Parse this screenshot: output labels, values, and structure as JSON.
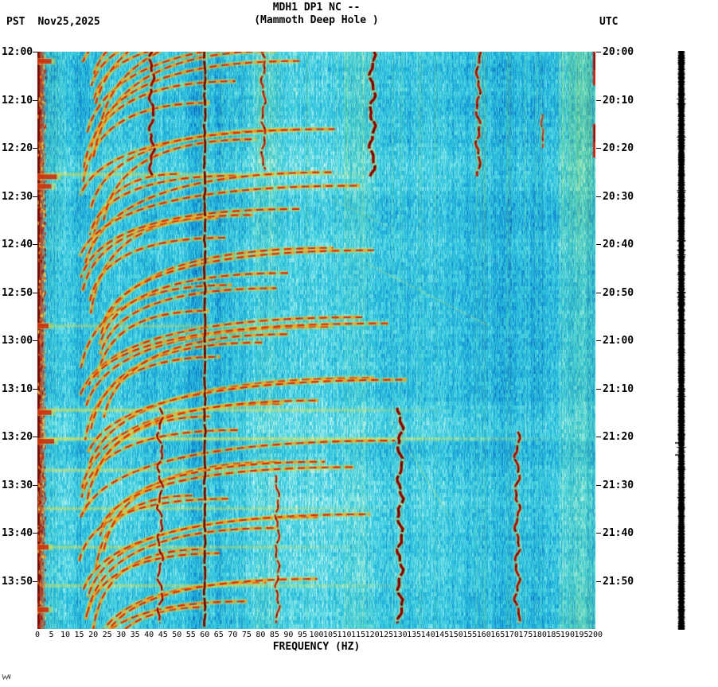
{
  "header": {
    "station_title": "MDH1 DP1 NC --",
    "station_subtitle": "(Mammoth Deep Hole )",
    "left_timezone": "PST",
    "date": "Nov25,2025",
    "right_timezone": "UTC"
  },
  "footer": {
    "x_axis_title": "FREQUENCY (HZ)"
  },
  "chart_data": {
    "type": "heatmap",
    "subtype": "seismic-spectrogram",
    "title": "MDH1 DP1 NC --",
    "subtitle": "(Mammoth Deep Hole )",
    "station": "MDH1 DP1 NC",
    "site_name": "Mammoth Deep Hole",
    "date": "Nov25,2025",
    "x_axis": {
      "label": "FREQUENCY (HZ)",
      "unit": "Hz",
      "min": 0,
      "max": 200,
      "tick_step": 5,
      "ticks": [
        "0",
        "5",
        "10",
        "15",
        "20",
        "25",
        "30",
        "35",
        "40",
        "45",
        "50",
        "55",
        "60",
        "65",
        "70",
        "75",
        "80",
        "85",
        "90",
        "95",
        "100",
        "105",
        "110",
        "115",
        "120",
        "125",
        "130",
        "135",
        "140",
        "145",
        "150",
        "155",
        "160",
        "165",
        "170",
        "175",
        "180",
        "185",
        "190",
        "195",
        "200"
      ]
    },
    "y_axis_left": {
      "timezone": "PST",
      "start": "12:00",
      "end": "14:00",
      "duration_min": 120,
      "tick_step_min": 10,
      "tick_labels": [
        "12:00",
        "12:10",
        "12:20",
        "12:30",
        "12:40",
        "12:50",
        "13:00",
        "13:10",
        "13:20",
        "13:30",
        "13:40",
        "13:50"
      ]
    },
    "y_axis_right": {
      "timezone": "UTC",
      "start": "20:00",
      "end": "22:00",
      "tick_labels": [
        "20:00",
        "20:10",
        "20:20",
        "20:30",
        "20:40",
        "20:50",
        "21:00",
        "21:10",
        "21:20",
        "21:30",
        "21:40",
        "21:50"
      ]
    },
    "colormap": {
      "bg_stops": [
        [
          0,
          "#0850b0"
        ],
        [
          0.22,
          "#1490d4"
        ],
        [
          0.5,
          "#2cc2dc"
        ],
        [
          0.75,
          "#62dce6"
        ],
        [
          1,
          "#c8f4f0"
        ]
      ],
      "tint": "#aadc64",
      "hot_glow": "#cde150",
      "hot_mid": "#ff9614",
      "hot_core": "#d21e06",
      "powerline": "#6e0606",
      "left_edge": "#a81408"
    },
    "features": {
      "powerline": {
        "f": 60,
        "color": "#6e0606",
        "width": 2.8
      },
      "glide_families": [
        {
          "t": 10,
          "n": 4,
          "dt": 2.6,
          "f_hi_min": 70,
          "f_hi_max": 120,
          "dur": 14
        },
        {
          "t": 27,
          "n": 7,
          "dt": 2.6,
          "f_hi_min": 60,
          "f_hi_max": 124,
          "dur": 18
        },
        {
          "t": 40,
          "n": 5,
          "dt": 2.4,
          "f_hi_min": 55,
          "f_hi_max": 104,
          "dur": 15
        },
        {
          "t": 54,
          "n": 6,
          "dt": 2.4,
          "f_hi_min": 60,
          "f_hi_max": 112,
          "dur": 16
        },
        {
          "t": 68,
          "n": 6,
          "dt": 2.4,
          "f_hi_min": 60,
          "f_hi_max": 118,
          "dur": 16
        },
        {
          "t": 81,
          "n": 6,
          "dt": 2.3,
          "f_hi_min": 65,
          "f_hi_max": 128,
          "dur": 16
        },
        {
          "t": 95,
          "n": 6,
          "dt": 2.3,
          "f_hi_min": 60,
          "f_hi_max": 130,
          "dur": 16
        },
        {
          "t": 108,
          "n": 6,
          "dt": 2.3,
          "f_hi_min": 60,
          "f_hi_max": 125,
          "dur": 15
        },
        {
          "t": 121,
          "n": 5,
          "dt": 2.4,
          "f_hi_min": 55,
          "f_hi_max": 115,
          "dur": 15
        },
        {
          "t": 131,
          "n": 4,
          "dt": 2.5,
          "f_hi_min": 60,
          "f_hi_max": 100,
          "dur": 15
        }
      ],
      "tremor_lines": [
        {
          "f": 41,
          "t0": 0,
          "t1": 26,
          "color": "#a00000",
          "width": 3,
          "amp": 2.5
        },
        {
          "f": 81,
          "t0": 0,
          "t1": 25,
          "color": "#c02010",
          "width": 2.4,
          "amp": 2
        },
        {
          "f": 120,
          "t0": 0,
          "t1": 26,
          "color": "#8e0000",
          "width": 3.4,
          "amp": 3
        },
        {
          "f": 158,
          "t0": 0,
          "t1": 26,
          "color": "#b01408",
          "width": 2.8,
          "amp": 2.2
        },
        {
          "f": 181,
          "t0": 13,
          "t1": 20,
          "color": "#c23020",
          "width": 1.8,
          "amp": 1
        },
        {
          "f": 44,
          "t0": 74,
          "t1": 119,
          "color": "#b00808",
          "width": 2.4,
          "amp": 2.8
        },
        {
          "f": 86,
          "t0": 88,
          "t1": 119,
          "color": "#c01810",
          "width": 2.2,
          "amp": 2
        },
        {
          "f": 130,
          "t0": 74,
          "t1": 119,
          "color": "#8a0000",
          "width": 3.4,
          "amp": 2.8
        },
        {
          "f": 172,
          "t0": 79,
          "t1": 119,
          "color": "#a80c06",
          "width": 2.8,
          "amp": 2.6
        }
      ],
      "broadband_bursts": [
        {
          "t": 25.5,
          "f0": 1,
          "f1": 125,
          "alpha": 0.35
        },
        {
          "t": 57,
          "f0": 1,
          "f1": 100,
          "alpha": 0.25
        },
        {
          "t": 74.5,
          "f0": 1,
          "f1": 150,
          "alpha": 0.4
        },
        {
          "t": 80.5,
          "f0": 1,
          "f1": 190,
          "alpha": 0.45
        },
        {
          "t": 87,
          "f0": 1,
          "f1": 112,
          "alpha": 0.3
        },
        {
          "t": 95,
          "f0": 1,
          "f1": 130,
          "alpha": 0.32
        },
        {
          "t": 103,
          "f0": 1,
          "f1": 120,
          "alpha": 0.3
        },
        {
          "t": 111,
          "f0": 1,
          "f1": 140,
          "alpha": 0.3
        }
      ],
      "diagonal_streaks": [
        {
          "f0": 118,
          "t0": 44,
          "f1": 162,
          "t1": 57,
          "alpha": 0.3
        },
        {
          "f0": 126,
          "t0": 76,
          "f1": 148,
          "t1": 97,
          "alpha": 0.3
        },
        {
          "f0": 96,
          "t0": 28,
          "f1": 128,
          "t1": 37,
          "alpha": 0.22
        }
      ],
      "left_edge_bursts": [
        {
          "t": 2,
          "f": 5
        },
        {
          "t": 26,
          "f": 7
        },
        {
          "t": 28,
          "f": 5
        },
        {
          "t": 57,
          "f": 4
        },
        {
          "t": 75,
          "f": 5
        },
        {
          "t": 81,
          "f": 6
        },
        {
          "t": 103,
          "f": 4
        },
        {
          "t": 116,
          "f": 4
        }
      ],
      "right_edge_marks": [
        {
          "t0": 0,
          "t1": 7
        },
        {
          "t0": 15,
          "t1": 22
        }
      ]
    },
    "side_strip": {
      "description": "compressed amplitude (helicorder) strip",
      "color": "#000000",
      "event_marks_min": [
        81.2,
        83.7
      ]
    }
  }
}
